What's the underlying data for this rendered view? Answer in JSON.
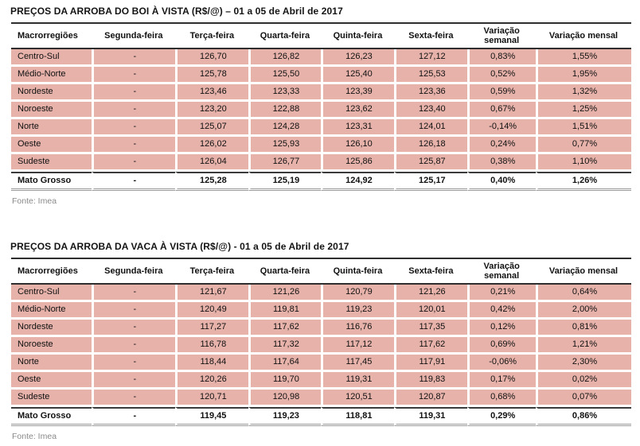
{
  "colors": {
    "row_pink": "#e6b2aa",
    "header_rule": "#2e2e2e",
    "total_top_rule": "#3a3a3a",
    "table_bottom_rule": "#9a9a9a",
    "source_text_gray": "#8a8a8a"
  },
  "tables": [
    {
      "title": "PREÇOS DA ARROBA DO BOI À VISTA (R$/@) – 01 a 05 de Abril de 2017",
      "columns": [
        "Macrorregiões",
        "Segunda-feira",
        "Terça-feira",
        "Quarta-feira",
        "Quinta-feira",
        "Sexta-feira",
        "Variação semanal",
        "Variação mensal"
      ],
      "rows": [
        [
          "Centro-Sul",
          "-",
          "126,70",
          "126,82",
          "126,23",
          "127,12",
          "0,83%",
          "1,55%"
        ],
        [
          "Médio-Norte",
          "-",
          "125,78",
          "125,50",
          "125,40",
          "125,53",
          "0,52%",
          "1,95%"
        ],
        [
          "Nordeste",
          "-",
          "123,46",
          "123,33",
          "123,39",
          "123,36",
          "0,59%",
          "1,32%"
        ],
        [
          "Noroeste",
          "-",
          "123,20",
          "122,88",
          "123,62",
          "123,40",
          "0,67%",
          "1,25%"
        ],
        [
          "Norte",
          "-",
          "125,07",
          "124,28",
          "123,31",
          "124,01",
          "-0,14%",
          "1,51%"
        ],
        [
          "Oeste",
          "-",
          "126,02",
          "125,93",
          "126,10",
          "126,18",
          "0,24%",
          "0,77%"
        ],
        [
          "Sudeste",
          "-",
          "126,04",
          "126,77",
          "125,86",
          "125,87",
          "0,38%",
          "1,10%"
        ]
      ],
      "total_row": [
        "Mato Grosso",
        "-",
        "125,28",
        "125,19",
        "124,92",
        "125,17",
        "0,40%",
        "1,26%"
      ],
      "source": "Fonte: Imea"
    },
    {
      "title": "PREÇOS DA ARROBA DA VACA À VISTA (R$/@) - 01 a 05 de Abril de 2017",
      "columns": [
        "Macrorregiões",
        "Segunda-feira",
        "Terça-feira",
        "Quarta-feira",
        "Quinta-feira",
        "Sexta-feira",
        "Variação semanal",
        "Variação mensal"
      ],
      "rows": [
        [
          "Centro-Sul",
          "-",
          "121,67",
          "121,26",
          "120,79",
          "121,26",
          "0,21%",
          "0,64%"
        ],
        [
          "Médio-Norte",
          "-",
          "120,49",
          "119,81",
          "119,23",
          "120,01",
          "0,42%",
          "2,00%"
        ],
        [
          "Nordeste",
          "-",
          "117,27",
          "117,62",
          "116,76",
          "117,35",
          "0,12%",
          "0,81%"
        ],
        [
          "Noroeste",
          "-",
          "116,78",
          "117,32",
          "117,12",
          "117,62",
          "0,69%",
          "1,21%"
        ],
        [
          "Norte",
          "-",
          "118,44",
          "117,64",
          "117,45",
          "117,91",
          "-0,06%",
          "2,30%"
        ],
        [
          "Oeste",
          "-",
          "120,26",
          "119,70",
          "119,31",
          "119,83",
          "0,17%",
          "0,02%"
        ],
        [
          "Sudeste",
          "-",
          "120,71",
          "120,98",
          "120,51",
          "120,87",
          "0,68%",
          "0,07%"
        ]
      ],
      "total_row": [
        "Mato Grosso",
        "-",
        "119,45",
        "119,23",
        "118,81",
        "119,31",
        "0,29%",
        "0,86%"
      ],
      "source": "Fonte: Imea"
    }
  ]
}
